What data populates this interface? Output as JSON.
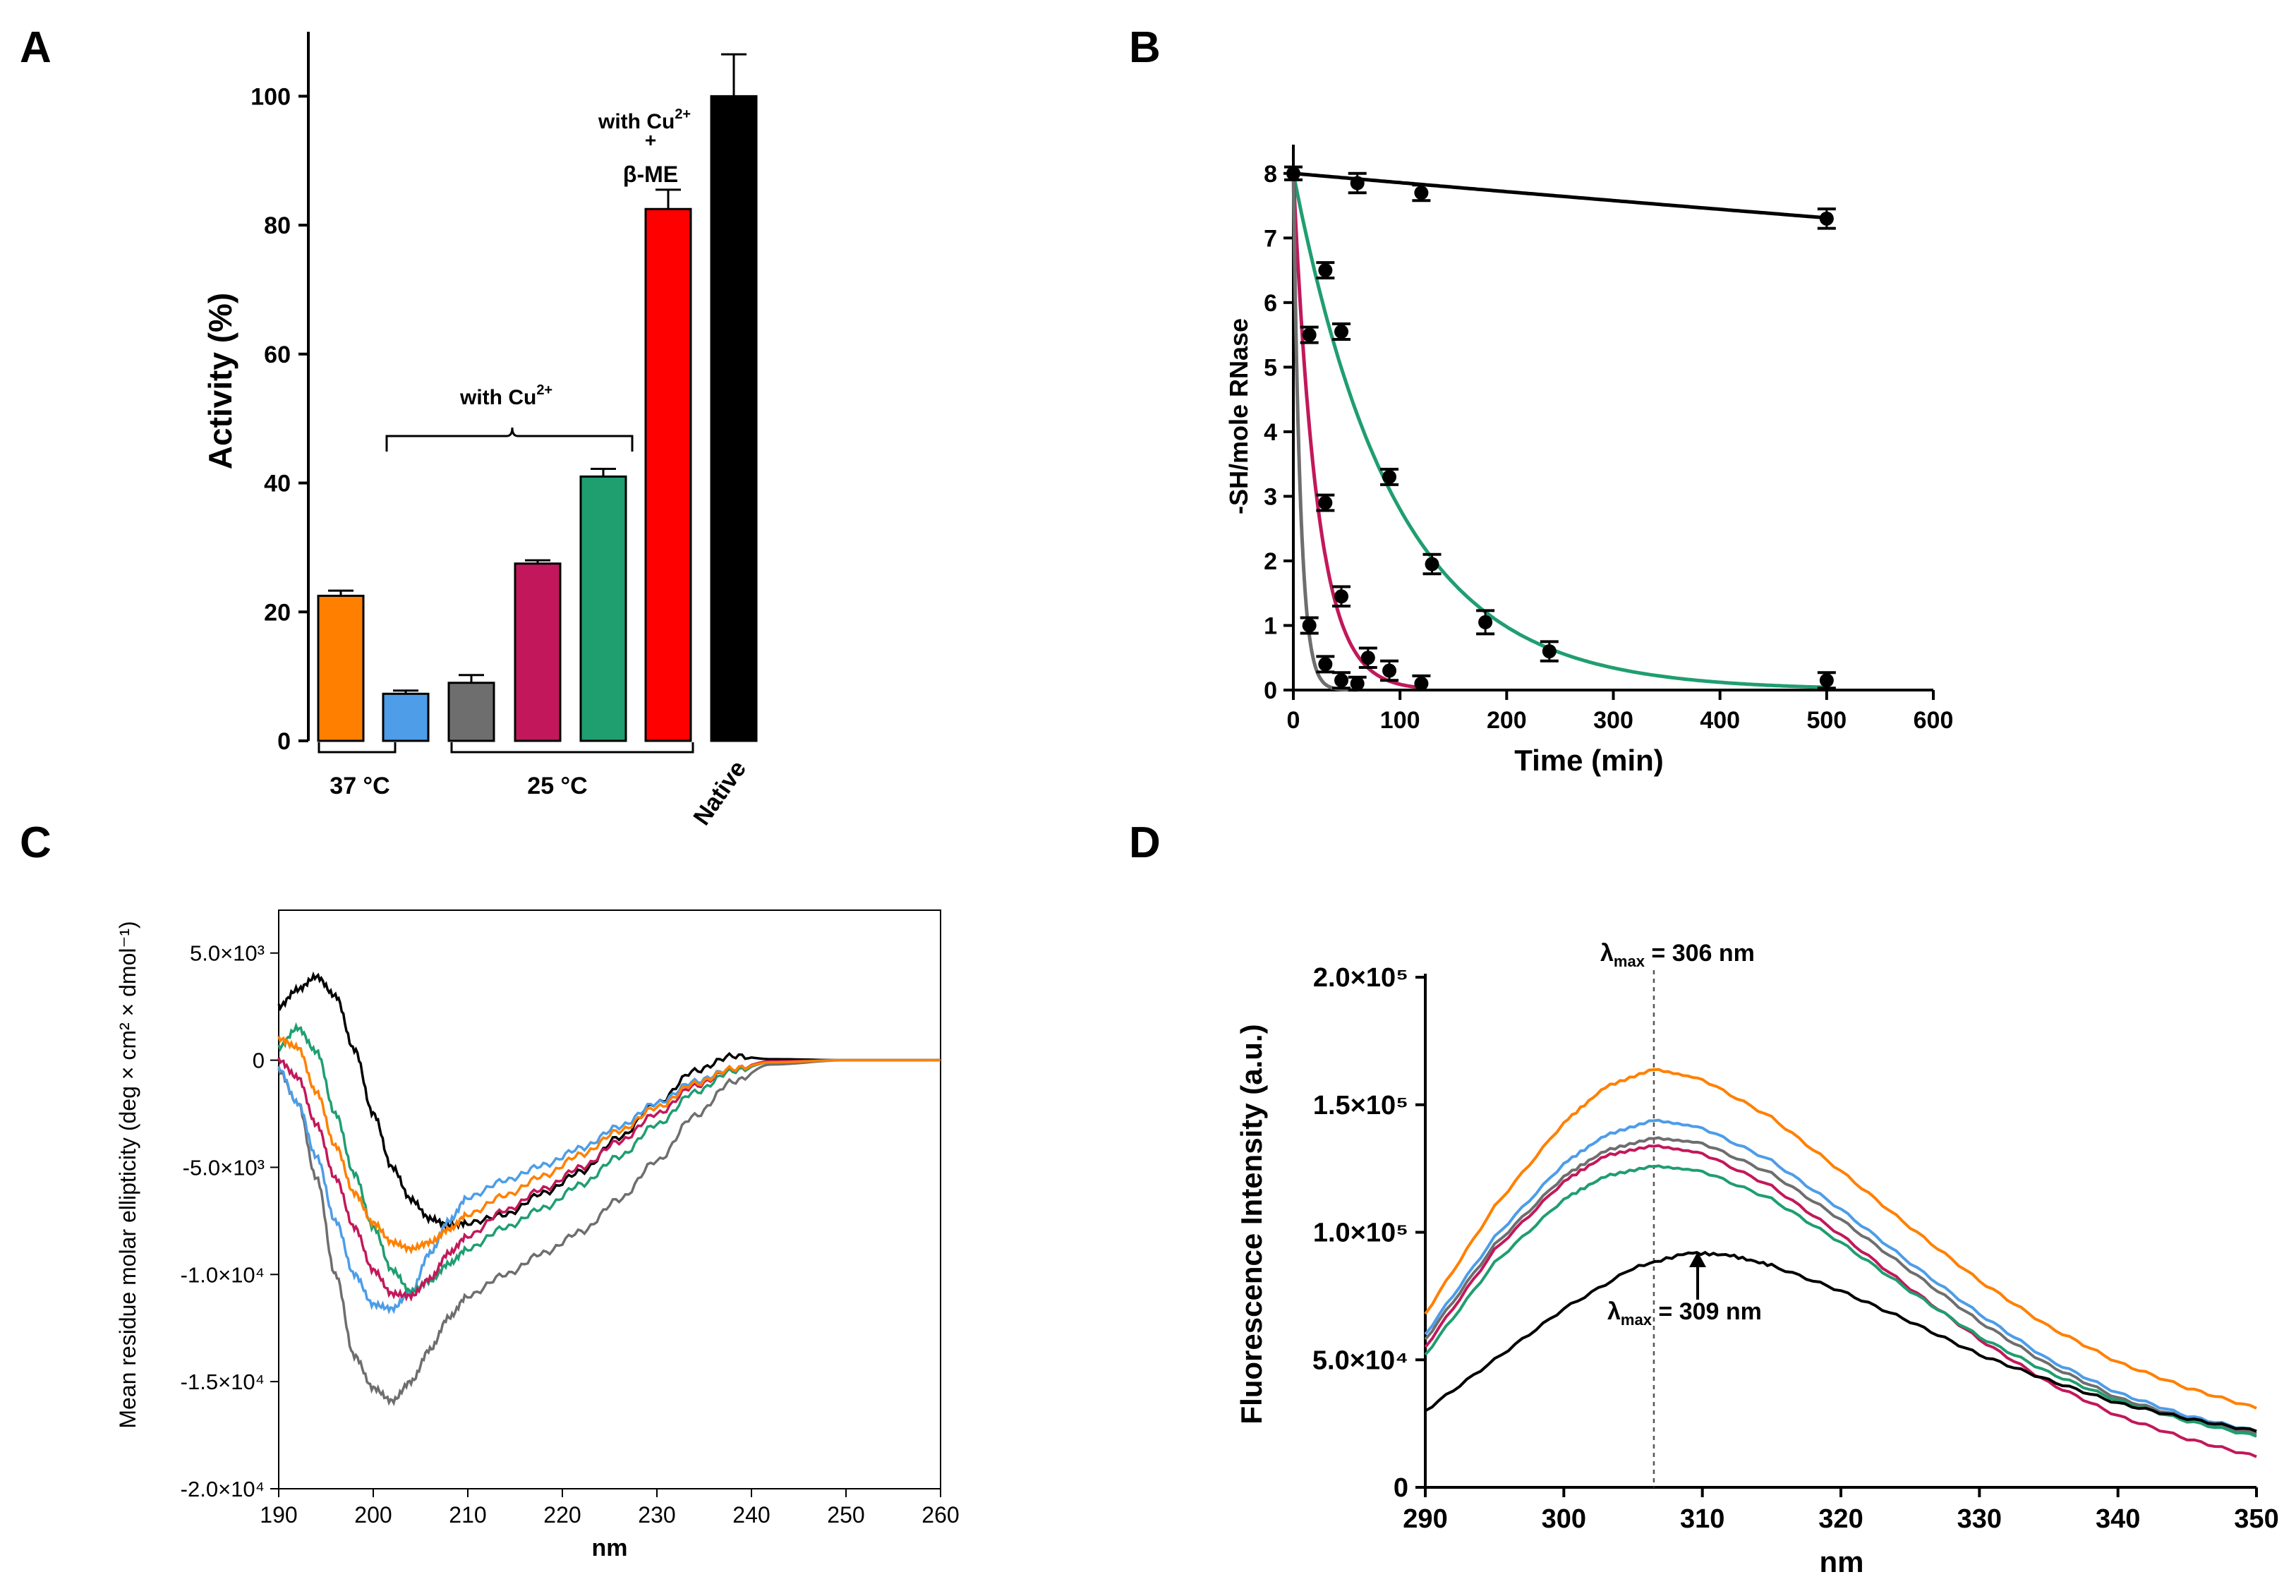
{
  "colors": {
    "orange": "#ff8000",
    "blue": "#4d9de8",
    "gray": "#6e6e6e",
    "magenta": "#c2185b",
    "green": "#1f9e70",
    "red": "#ff0000",
    "black": "#000000"
  },
  "chart_data": [
    {
      "panel": "A",
      "type": "bar",
      "ylabel": "Activity (%)",
      "ylim": [
        0,
        110
      ],
      "yticks": [
        "0",
        "20",
        "40",
        "60",
        "80",
        "100"
      ],
      "values": [
        22.5,
        7.3,
        9.0,
        27.5,
        41.0,
        82.5,
        100
      ],
      "errors": [
        0.8,
        0.5,
        1.2,
        0.5,
        1.2,
        3.0,
        6.5
      ],
      "colors": [
        "orange",
        "blue",
        "gray",
        "magenta",
        "green",
        "red",
        "black"
      ],
      "groups": [
        {
          "label": "37 °C",
          "from": 0,
          "to": 1
        },
        {
          "label": "25 °C",
          "from": 2,
          "to": 5
        }
      ],
      "native_label": "Native",
      "annotations": {
        "with_cu": "with Cu",
        "with_cu_sup": "2+",
        "with_cu_me_1": "with Cu",
        "with_cu_me_sup": "2+",
        "with_cu_me_plus": "+",
        "with_cu_me_2": "β-ME"
      }
    },
    {
      "panel": "B",
      "type": "scatter",
      "xlabel": "Time (min)",
      "ylabel": "-SH/mole RNase",
      "xlim": [
        0,
        600
      ],
      "ylim": [
        0,
        8.5
      ],
      "xticks": [
        "0",
        "100",
        "200",
        "300",
        "400",
        "500",
        "600"
      ],
      "yticks": [
        "0",
        "1",
        "2",
        "3",
        "4",
        "5",
        "6",
        "7",
        "8"
      ],
      "series": [
        {
          "name": "black",
          "color": "black",
          "fit": {
            "y0": 8,
            "k": 0.00018,
            "tmax": 500
          },
          "x": [
            0,
            60,
            120,
            500
          ],
          "y": [
            8.0,
            7.85,
            7.7,
            7.3
          ],
          "err": [
            0.1,
            0.15,
            0.12,
            0.15
          ]
        },
        {
          "name": "green",
          "color": "green",
          "fit": {
            "y0": 8,
            "k": 0.0105,
            "tmax": 500
          },
          "x": [
            30,
            45,
            90,
            130,
            180,
            240,
            500
          ],
          "y": [
            6.5,
            5.55,
            3.3,
            1.95,
            1.05,
            0.6,
            0.15
          ],
          "err": [
            0.12,
            0.12,
            0.12,
            0.15,
            0.18,
            0.15,
            0.12
          ]
        },
        {
          "name": "magenta",
          "color": "magenta",
          "fit": {
            "y0": 8,
            "k": 0.045,
            "tmax": 120
          },
          "x": [
            15,
            30,
            45,
            70,
            90,
            120
          ],
          "y": [
            5.5,
            2.9,
            1.45,
            0.5,
            0.3,
            0.1
          ],
          "err": [
            0.12,
            0.12,
            0.15,
            0.15,
            0.15,
            0.12
          ]
        },
        {
          "name": "gray",
          "color": "gray",
          "fit": {
            "y0": 8,
            "k": 0.15,
            "tmax": 60
          },
          "x": [
            15,
            30,
            45,
            60
          ],
          "y": [
            1.0,
            0.4,
            0.15,
            0.1
          ],
          "err": [
            0.12,
            0.12,
            0.12,
            0.1
          ]
        }
      ]
    },
    {
      "panel": "C",
      "type": "line",
      "xlabel": "nm",
      "ylabel": "Mean residue molar ellipticity (deg  × cm² × dmol⁻¹)",
      "xlim": [
        190,
        260
      ],
      "ylim": [
        -20000,
        7000
      ],
      "xticks": [
        "190",
        "200",
        "210",
        "220",
        "230",
        "240",
        "250",
        "260"
      ],
      "yticks": [
        {
          "v": 5000,
          "t": "5.0×10³"
        },
        {
          "v": 0,
          "t": "0"
        },
        {
          "v": -5000,
          "t": "-5.0×10³"
        },
        {
          "v": -10000,
          "t": "-1.0×10⁴"
        },
        {
          "v": -15000,
          "t": "-1.5×10⁴"
        },
        {
          "v": -20000,
          "t": "-2.0×10⁴"
        }
      ],
      "series": [
        {
          "name": "black",
          "color": "black",
          "x": [
            190,
            192,
            194,
            196,
            198,
            200,
            202,
            204,
            206,
            208,
            210,
            214,
            218,
            222,
            226,
            230,
            234,
            238,
            242,
            250,
            260
          ],
          "y": [
            2500,
            3300,
            3900,
            3000,
            500,
            -2500,
            -5000,
            -6500,
            -7400,
            -7700,
            -7600,
            -7200,
            -6200,
            -5200,
            -3600,
            -2000,
            -500,
            200,
            50,
            0,
            0
          ]
        },
        {
          "name": "gray",
          "color": "gray",
          "x": [
            190,
            192,
            194,
            196,
            198,
            200,
            202,
            204,
            206,
            208,
            210,
            214,
            218,
            222,
            226,
            230,
            234,
            238,
            242,
            250,
            260
          ],
          "y": [
            -500,
            -2000,
            -5500,
            -10000,
            -13800,
            -15300,
            -15900,
            -15000,
            -13500,
            -12000,
            -11000,
            -10000,
            -9000,
            -8000,
            -6500,
            -4700,
            -2600,
            -1000,
            -200,
            0,
            0
          ]
        },
        {
          "name": "blue",
          "color": "blue",
          "x": [
            190,
            192,
            194,
            196,
            198,
            200,
            202,
            204,
            206,
            208,
            210,
            214,
            218,
            222,
            226,
            230,
            234,
            238,
            242,
            250,
            260
          ],
          "y": [
            -400,
            -2000,
            -4500,
            -7500,
            -10000,
            -11400,
            -11600,
            -10800,
            -9000,
            -7500,
            -6400,
            -5600,
            -4900,
            -4100,
            -3100,
            -2000,
            -1000,
            -400,
            -100,
            0,
            0
          ]
        },
        {
          "name": "green",
          "color": "green",
          "x": [
            190,
            192,
            194,
            196,
            198,
            200,
            202,
            204,
            206,
            208,
            210,
            214,
            218,
            222,
            226,
            230,
            234,
            238,
            242,
            250,
            260
          ],
          "y": [
            600,
            1500,
            400,
            -2500,
            -5300,
            -7800,
            -9800,
            -10800,
            -10300,
            -9500,
            -8800,
            -7800,
            -6900,
            -5800,
            -4500,
            -3000,
            -1500,
            -500,
            -100,
            0,
            0
          ]
        },
        {
          "name": "magenta",
          "color": "magenta",
          "x": [
            190,
            192,
            194,
            196,
            198,
            200,
            202,
            204,
            206,
            208,
            210,
            214,
            218,
            222,
            226,
            230,
            234,
            238,
            242,
            250,
            260
          ],
          "y": [
            0,
            -800,
            -3000,
            -5500,
            -7800,
            -9800,
            -10900,
            -11000,
            -10200,
            -9000,
            -8200,
            -7000,
            -6000,
            -5000,
            -3800,
            -2500,
            -1200,
            -400,
            -50,
            0,
            0
          ]
        },
        {
          "name": "orange",
          "color": "orange",
          "x": [
            190,
            192,
            194,
            196,
            198,
            200,
            202,
            204,
            206,
            208,
            210,
            214,
            218,
            222,
            226,
            230,
            234,
            238,
            242,
            250,
            260
          ],
          "y": [
            1000,
            600,
            -1500,
            -4000,
            -6200,
            -7600,
            -8500,
            -8800,
            -8500,
            -7900,
            -7200,
            -6300,
            -5400,
            -4400,
            -3300,
            -2200,
            -1100,
            -400,
            -100,
            0,
            0
          ]
        }
      ]
    },
    {
      "panel": "D",
      "type": "line",
      "xlabel": "nm",
      "ylabel": "Fluorescence Intensity (a.u.)",
      "xlim": [
        290,
        350
      ],
      "ylim": [
        0,
        200000
      ],
      "xticks": [
        "290",
        "300",
        "310",
        "320",
        "330",
        "340",
        "350"
      ],
      "yticks": [
        {
          "v": 0,
          "t": "0"
        },
        {
          "v": 50000,
          "t": "5.0×10⁴"
        },
        {
          "v": 100000,
          "t": "1.0×10⁵"
        },
        {
          "v": 150000,
          "t": "1.5×10⁵"
        },
        {
          "v": 200000,
          "t": "2.0×10⁵"
        }
      ],
      "dashed_x": 306.5,
      "annotations": {
        "lambda_top": "λ",
        "lambda_top_sub": "max",
        "lambda_top_val": " = 306 nm",
        "lambda_bottom": "λ",
        "lambda_bottom_sub": "max",
        "lambda_bottom_val": " = 309 nm"
      },
      "series": [
        {
          "name": "orange",
          "color": "orange",
          "x": [
            290,
            295,
            300,
            303,
            306.5,
            310,
            315,
            320,
            325,
            330,
            335,
            340,
            345,
            350
          ],
          "y": [
            68000,
            110000,
            143000,
            157000,
            164000,
            160000,
            145000,
            124000,
            102000,
            81000,
            63000,
            49000,
            39000,
            31000
          ]
        },
        {
          "name": "blue",
          "color": "blue",
          "x": [
            290,
            295,
            300,
            303,
            306.5,
            310,
            315,
            320,
            325,
            330,
            335,
            340,
            345,
            350
          ],
          "y": [
            60000,
            98000,
            127000,
            138000,
            144000,
            141000,
            128000,
            109000,
            88000,
            68000,
            50000,
            37000,
            28000,
            22000
          ]
        },
        {
          "name": "gray",
          "color": "gray",
          "x": [
            290,
            295,
            300,
            303,
            306.5,
            310,
            315,
            320,
            325,
            330,
            335,
            340,
            345,
            350
          ],
          "y": [
            58000,
            95000,
            122000,
            132000,
            137000,
            135000,
            123000,
            105000,
            85000,
            65000,
            48000,
            35000,
            27000,
            21000
          ]
        },
        {
          "name": "magenta",
          "color": "magenta",
          "x": [
            290,
            295,
            300,
            303,
            306.5,
            310,
            315,
            320,
            325,
            330,
            335,
            340,
            345,
            350
          ],
          "y": [
            55000,
            93000,
            120000,
            130000,
            134000,
            131000,
            118000,
            99000,
            78000,
            58000,
            41000,
            28000,
            19000,
            12000
          ]
        },
        {
          "name": "green",
          "color": "green",
          "x": [
            290,
            295,
            300,
            303,
            306.5,
            310,
            315,
            320,
            325,
            330,
            335,
            340,
            345,
            350
          ],
          "y": [
            52000,
            88000,
            113000,
            122000,
            126000,
            124000,
            113000,
            96000,
            77000,
            59000,
            45000,
            34000,
            26000,
            20000
          ]
        },
        {
          "name": "black",
          "color": "black",
          "x": [
            290,
            295,
            300,
            305,
            309,
            312,
            315,
            320,
            325,
            330,
            335,
            340,
            345,
            350
          ],
          "y": [
            30000,
            50000,
            70000,
            86000,
            92000,
            91000,
            87000,
            77000,
            65000,
            52000,
            42000,
            33000,
            27000,
            22000
          ]
        }
      ]
    }
  ]
}
